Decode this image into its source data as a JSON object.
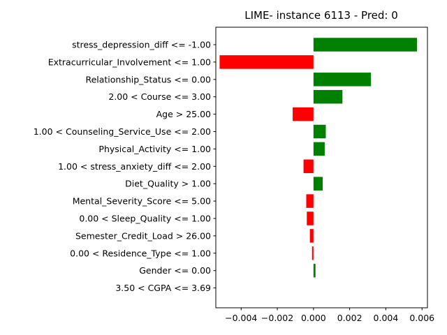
{
  "chart_data": {
    "type": "bar",
    "orientation": "horizontal",
    "title": "LIME- instance 6113 - Pred: 0",
    "xlabel": "",
    "ylabel": "",
    "xlim": [
      -0.0054,
      0.0063
    ],
    "xticks": [
      -0.004,
      -0.002,
      0.0,
      0.002,
      0.004,
      0.006
    ],
    "xtick_labels": [
      "−0.004",
      "−0.002",
      "0.000",
      "0.002",
      "0.004",
      "0.006"
    ],
    "grid": false,
    "positive_color": "#008000",
    "negative_color": "#ff0000",
    "categories": [
      "stress_depression_diff <= -1.00",
      "Extracurricular_Involvement <= 1.00",
      "Relationship_Status <= 0.00",
      "2.00 < Course <= 3.00",
      "Age > 25.00",
      "1.00 < Counseling_Service_Use <= 2.00",
      "Physical_Activity <= 1.00",
      "1.00 < stress_anxiety_diff <= 2.00",
      "Diet_Quality > 1.00",
      "Mental_Severity_Score <= 5.00",
      "0.00 < Sleep_Quality <= 1.00",
      "Semester_Credit_Load > 26.00",
      "0.00 < Residence_Type <= 1.00",
      "Gender <= 0.00",
      "3.50 < CGPA <= 3.69"
    ],
    "values": [
      0.00572,
      -0.00519,
      0.00318,
      0.0016,
      -0.00115,
      0.00068,
      0.00062,
      -0.00055,
      0.00051,
      -0.0004,
      -0.00037,
      -0.0002,
      -8e-05,
      0.00011,
      0.0
    ]
  }
}
